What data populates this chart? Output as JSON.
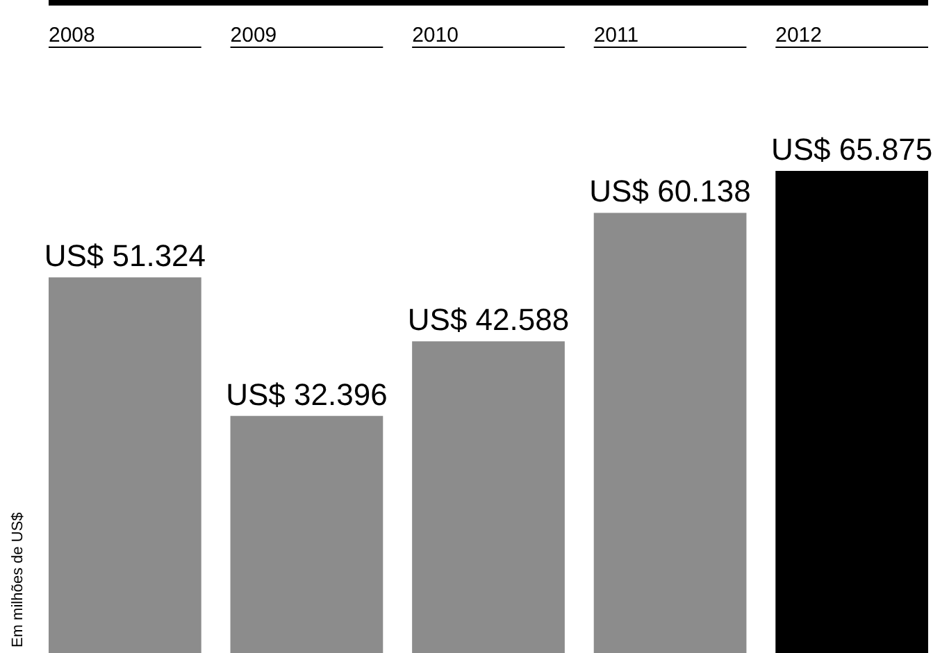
{
  "chart_data": {
    "type": "bar",
    "ylabel": "Em milhões de US$",
    "categories": [
      "2008",
      "2009",
      "2010",
      "2011",
      "2012"
    ],
    "values": [
      51324,
      32396,
      42588,
      60138,
      65875
    ],
    "colors": [
      "#8c8c8c",
      "#8c8c8c",
      "#8c8c8c",
      "#8c8c8c",
      "#000000"
    ],
    "value_labels": [
      "US$ 51.324",
      "US$ 32.396",
      "US$ 42.588",
      "US$ 60.138",
      "US$ 65.875"
    ]
  }
}
